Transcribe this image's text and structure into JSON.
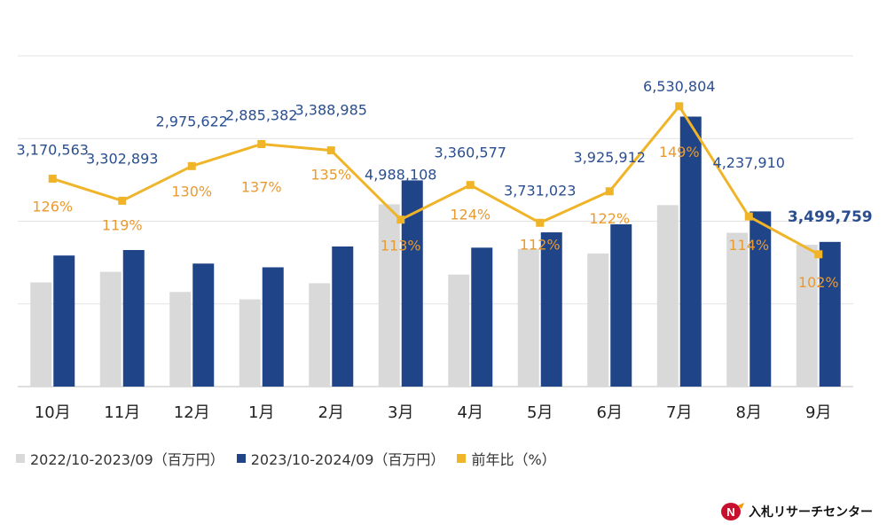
{
  "chart_data": {
    "type": "bar",
    "categories": [
      "10月",
      "11月",
      "12月",
      "1月",
      "2月",
      "3月",
      "4月",
      "5月",
      "6月",
      "7月",
      "8月",
      "9月"
    ],
    "series": [
      {
        "name": "2022/10-2023/09（百万円）",
        "kind": "bar",
        "color": "#d9d9d9",
        "values": [
          2520000,
          2775000,
          2290000,
          2110000,
          2500000,
          4410000,
          2710000,
          3330000,
          3220000,
          4390000,
          3720000,
          3430000
        ]
      },
      {
        "name": "2023/10-2024/09（百万円）",
        "kind": "bar",
        "color": "#1f4488",
        "values": [
          3170563,
          3302893,
          2975622,
          2885382,
          3388985,
          4988108,
          3360577,
          3731023,
          3925912,
          6530804,
          4237910,
          3499759
        ]
      },
      {
        "name": "前年比（%）",
        "kind": "line",
        "color": "#f0b429",
        "values": [
          126,
          119,
          130,
          137,
          135,
          113,
          124,
          112,
          122,
          149,
          114,
          102
        ]
      }
    ],
    "bar_labels": [
      "3,170,563",
      "3,302,893",
      "2,975,622",
      "2,885,382",
      "3,388,985",
      "4,988,108",
      "3,360,577",
      "3,731,023",
      "3,925,912",
      "6,530,804",
      "4,237,910",
      "3,499,759"
    ],
    "pct_labels": [
      "126%",
      "119%",
      "130%",
      "137%",
      "135%",
      "113%",
      "124%",
      "112%",
      "122%",
      "149%",
      "114%",
      "102%"
    ],
    "ylim_bar": [
      0,
      8000000
    ],
    "ylim_pct": [
      60,
      165
    ],
    "grid": true
  },
  "legend": {
    "items": [
      {
        "label": "2022/10-2023/09（百万円）",
        "color": "#d9d9d9"
      },
      {
        "label": "2023/10-2024/09（百万円）",
        "color": "#1f4488"
      },
      {
        "label": "前年比（%）",
        "color": "#f0b429"
      }
    ]
  },
  "logo": {
    "text": "入札リサーチセンター",
    "mark": "N"
  }
}
